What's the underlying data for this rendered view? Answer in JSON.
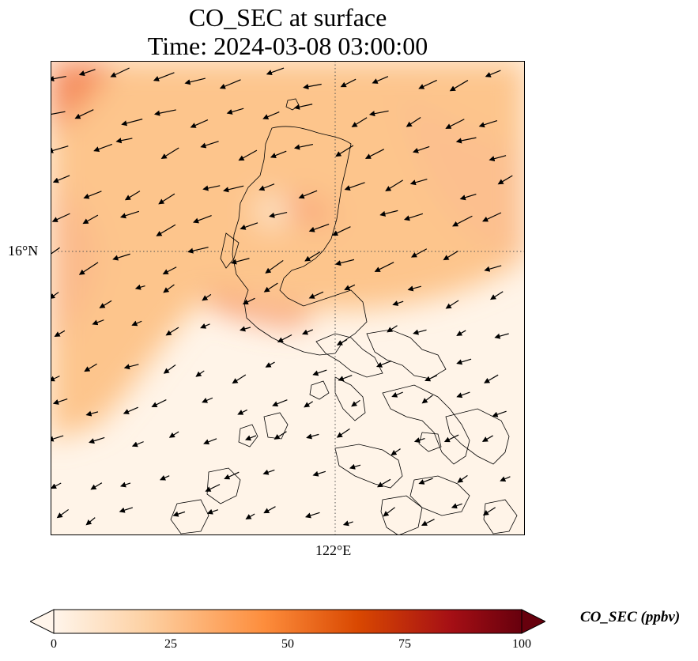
{
  "title": {
    "line1": "CO_SEC at surface",
    "line2": "Time: 2024-03-08 03:00:00"
  },
  "map": {
    "lat_labels": [
      "16°N"
    ],
    "lon_labels": [
      "122°E"
    ],
    "gridlines": "dotted"
  },
  "colorbar": {
    "label": "CO_SEC (ppbv)",
    "ticks": [
      "0",
      "25",
      "50",
      "75",
      "100"
    ],
    "min": 0,
    "max": 100,
    "colormap": [
      "#fff5eb",
      "#fdd0a2",
      "#fd8d3c",
      "#d94801",
      "#a50f15",
      "#67000d"
    ],
    "extend": "both"
  }
}
